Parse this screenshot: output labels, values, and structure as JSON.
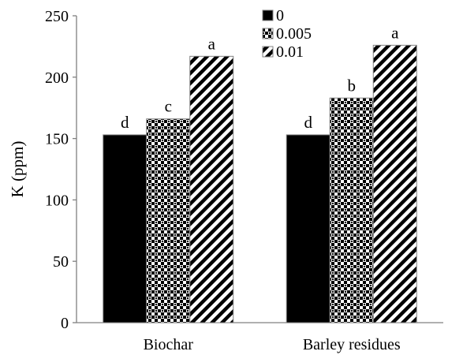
{
  "chart_data": {
    "type": "bar",
    "title": "",
    "xlabel": "",
    "ylabel": "K (ppm)",
    "ylim": [
      0,
      250
    ],
    "yticks": [
      0,
      50,
      100,
      150,
      200,
      250
    ],
    "grid": false,
    "legend_position": "top-center",
    "categories": [
      "Biochar",
      "Barley residues"
    ],
    "series": [
      {
        "name": "0",
        "values": [
          153,
          153
        ],
        "pattern": "solid",
        "color": "#000000",
        "labels": [
          "d",
          "d"
        ]
      },
      {
        "name": "0.005",
        "values": [
          166,
          183
        ],
        "pattern": "checker",
        "color": "#000000",
        "labels": [
          "c",
          "b"
        ]
      },
      {
        "name": "0.01",
        "values": [
          217,
          226
        ],
        "pattern": "diagonal",
        "color": "#000000",
        "labels": [
          "a",
          "a"
        ]
      }
    ]
  }
}
